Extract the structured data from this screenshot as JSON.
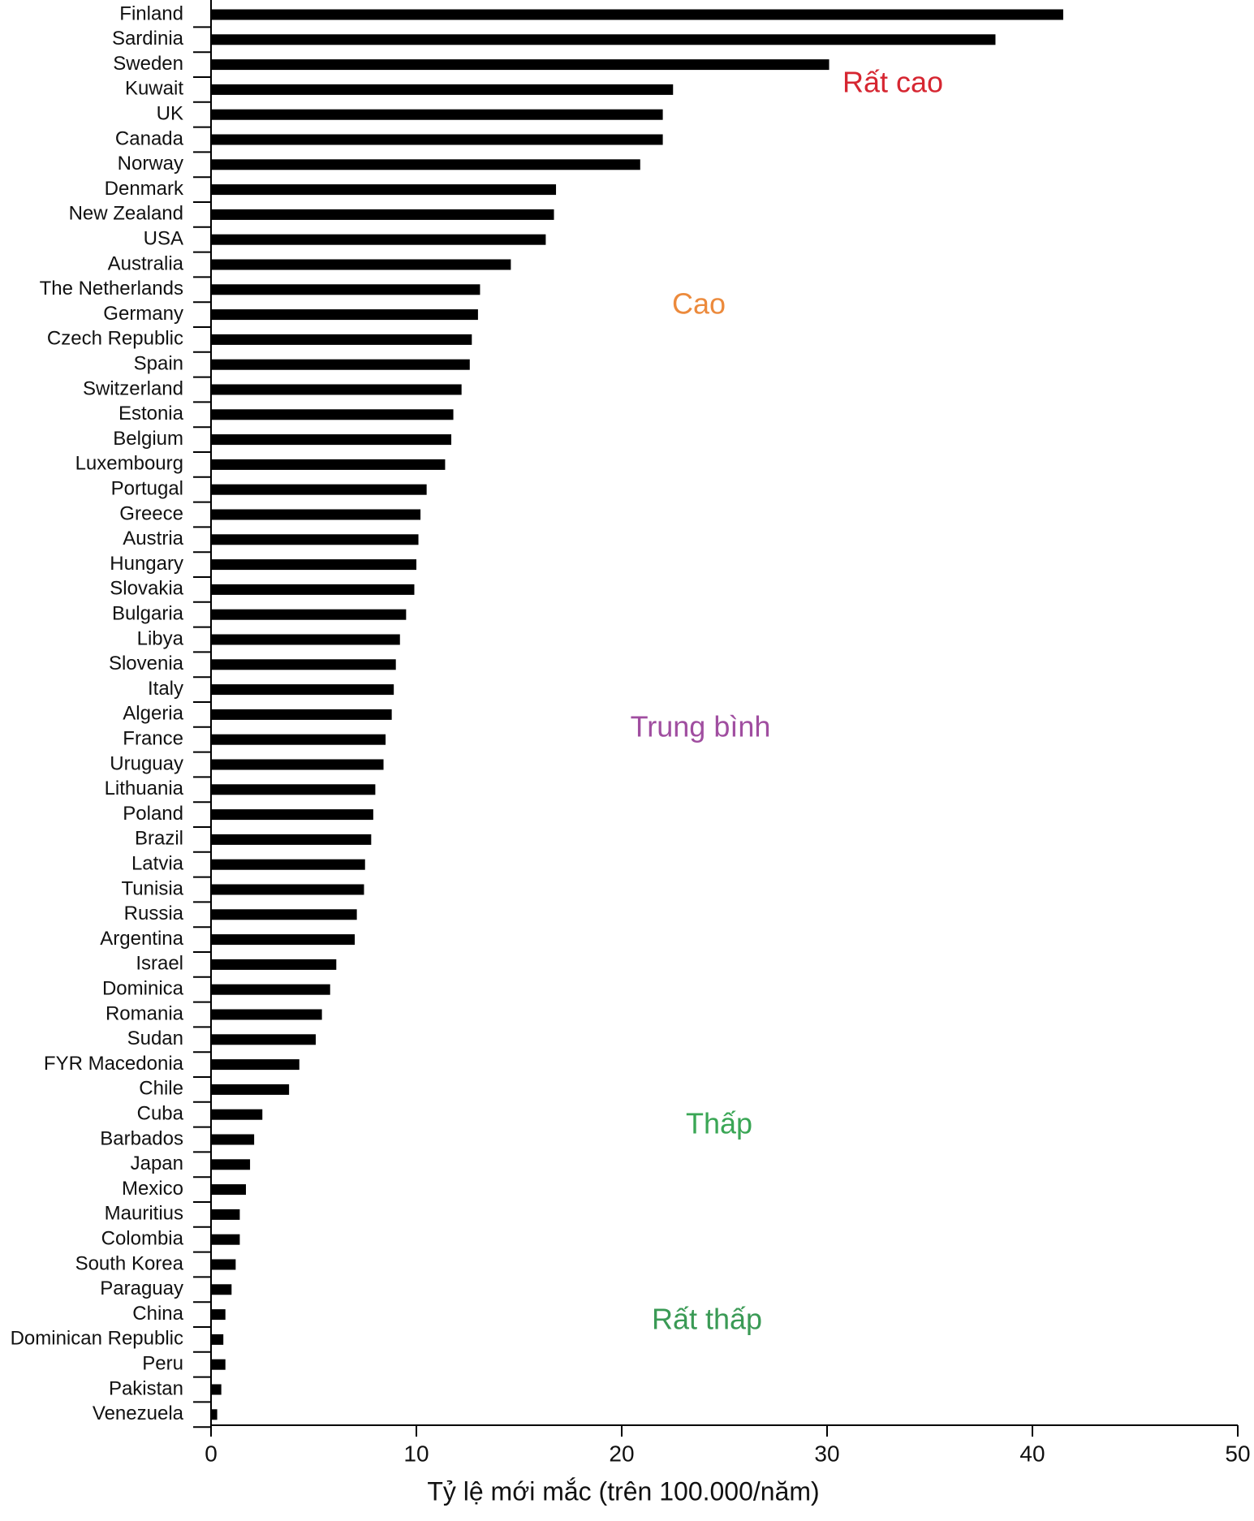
{
  "chart_data": {
    "type": "barh",
    "x_label": "Tỷ lệ mới mắc (trên 100.000/năm)",
    "categories": [
      "Finland",
      "Sardinia",
      "Sweden",
      "Kuwait",
      "UK",
      "Canada",
      "Norway",
      "Denmark",
      "New Zealand",
      "USA",
      "Australia",
      "The Netherlands",
      "Germany",
      "Czech Republic",
      "Spain",
      "Switzerland",
      "Estonia",
      "Belgium",
      "Luxembourg",
      "Portugal",
      "Greece",
      "Austria",
      "Hungary",
      "Slovakia",
      "Bulgaria",
      "Libya",
      "Slovenia",
      "Italy",
      "Algeria",
      "France",
      "Uruguay",
      "Lithuania",
      "Poland",
      "Brazil",
      "Latvia",
      "Tunisia",
      "Russia",
      "Argentina",
      "Israel",
      "Dominica",
      "Romania",
      "Sudan",
      "FYR Macedonia",
      "Chile",
      "Cuba",
      "Barbados",
      "Japan",
      "Mexico",
      "Mauritius",
      "Colombia",
      "South Korea",
      "Paraguay",
      "China",
      "Dominican Republic",
      "Peru",
      "Pakistan",
      "Venezuela"
    ],
    "values": [
      41.5,
      38.2,
      30.1,
      22.5,
      22.0,
      22.0,
      20.9,
      16.8,
      16.7,
      16.3,
      14.6,
      13.1,
      13.0,
      12.7,
      12.6,
      12.2,
      11.8,
      11.7,
      11.4,
      10.5,
      10.2,
      10.1,
      10.0,
      9.9,
      9.5,
      9.2,
      9.0,
      8.9,
      8.8,
      8.5,
      8.4,
      8.0,
      7.9,
      7.8,
      7.5,
      7.45,
      7.1,
      7.0,
      6.1,
      5.8,
      5.4,
      5.1,
      4.3,
      3.8,
      2.5,
      2.1,
      1.9,
      1.7,
      1.4,
      1.4,
      1.2,
      1.0,
      0.7,
      0.6,
      0.7,
      0.5,
      0.3
    ],
    "color": "#000000",
    "xlim": [
      0,
      50
    ],
    "xticks": [
      0,
      10,
      20,
      30,
      40,
      50
    ],
    "annotations": [
      {
        "text": "Rất cao",
        "color": "#d62631"
      },
      {
        "text": "Cao",
        "color": "#ec8a3c"
      },
      {
        "text": "Trung bình",
        "color": "#a04ea0"
      },
      {
        "text": "Thấp",
        "color": "#3aa655"
      },
      {
        "text": "Rất thấp",
        "color": "#3a9a55"
      }
    ]
  }
}
